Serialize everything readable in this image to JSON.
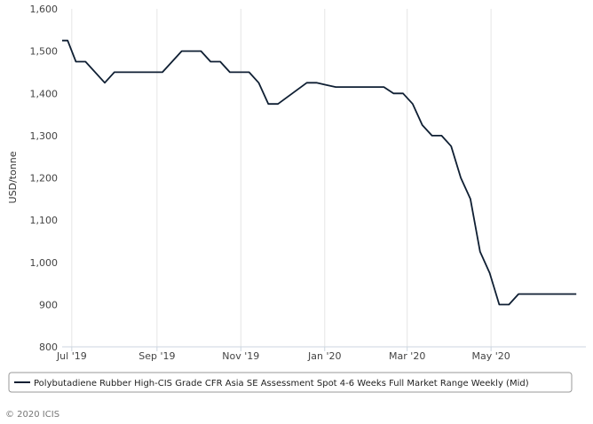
{
  "chart_data": {
    "type": "line",
    "title": "",
    "xlabel": "",
    "ylabel": "USD/tonne",
    "ylim": [
      800,
      1600
    ],
    "y_ticks": [
      800,
      900,
      1000,
      1100,
      1200,
      1300,
      1400,
      1500,
      1600
    ],
    "y_tick_labels": [
      "800",
      "900",
      "1,000",
      "1,100",
      "1,200",
      "1,300",
      "1,400",
      "1,500",
      "1,600"
    ],
    "x_range": [
      "2019-06-24",
      "2020-07-09"
    ],
    "x_ticks": [
      {
        "date": "2019-07-01",
        "label": "Jul '19"
      },
      {
        "date": "2019-09-01",
        "label": "Sep '19"
      },
      {
        "date": "2019-11-01",
        "label": "Nov '19"
      },
      {
        "date": "2020-01-01",
        "label": "Jan '20"
      },
      {
        "date": "2020-03-01",
        "label": "Mar '20"
      },
      {
        "date": "2020-05-01",
        "label": "May '20"
      }
    ],
    "grid": "vertical",
    "legend_position": "bottom",
    "series": [
      {
        "name": "Polybutadiene Rubber High-CIS Grade CFR Asia SE Assessment Spot 4-6 Weeks Full Market Range Weekly (Mid)",
        "color": "#0f1f33",
        "points": [
          {
            "x": "2019-06-24",
            "y": 1525
          },
          {
            "x": "2019-06-28",
            "y": 1525
          },
          {
            "x": "2019-07-04",
            "y": 1475
          },
          {
            "x": "2019-07-11",
            "y": 1475
          },
          {
            "x": "2019-07-25",
            "y": 1425
          },
          {
            "x": "2019-08-01",
            "y": 1450
          },
          {
            "x": "2019-08-29",
            "y": 1450
          },
          {
            "x": "2019-09-05",
            "y": 1450
          },
          {
            "x": "2019-09-19",
            "y": 1500
          },
          {
            "x": "2019-10-03",
            "y": 1500
          },
          {
            "x": "2019-10-10",
            "y": 1475
          },
          {
            "x": "2019-10-17",
            "y": 1475
          },
          {
            "x": "2019-10-24",
            "y": 1450
          },
          {
            "x": "2019-11-07",
            "y": 1450
          },
          {
            "x": "2019-11-14",
            "y": 1425
          },
          {
            "x": "2019-11-21",
            "y": 1375
          },
          {
            "x": "2019-11-28",
            "y": 1375
          },
          {
            "x": "2019-12-19",
            "y": 1425
          },
          {
            "x": "2019-12-26",
            "y": 1425
          },
          {
            "x": "2020-01-02",
            "y": 1420
          },
          {
            "x": "2020-01-09",
            "y": 1415
          },
          {
            "x": "2020-02-13",
            "y": 1415
          },
          {
            "x": "2020-02-20",
            "y": 1400
          },
          {
            "x": "2020-02-27",
            "y": 1400
          },
          {
            "x": "2020-03-05",
            "y": 1375
          },
          {
            "x": "2020-03-12",
            "y": 1325
          },
          {
            "x": "2020-03-19",
            "y": 1300
          },
          {
            "x": "2020-03-26",
            "y": 1300
          },
          {
            "x": "2020-04-02",
            "y": 1275
          },
          {
            "x": "2020-04-09",
            "y": 1200
          },
          {
            "x": "2020-04-16",
            "y": 1150
          },
          {
            "x": "2020-04-23",
            "y": 1025
          },
          {
            "x": "2020-04-30",
            "y": 975
          },
          {
            "x": "2020-05-07",
            "y": 900
          },
          {
            "x": "2020-05-14",
            "y": 900
          },
          {
            "x": "2020-05-21",
            "y": 925
          },
          {
            "x": "2020-07-02",
            "y": 925
          }
        ]
      }
    ]
  },
  "credit": "© 2020 ICIS"
}
